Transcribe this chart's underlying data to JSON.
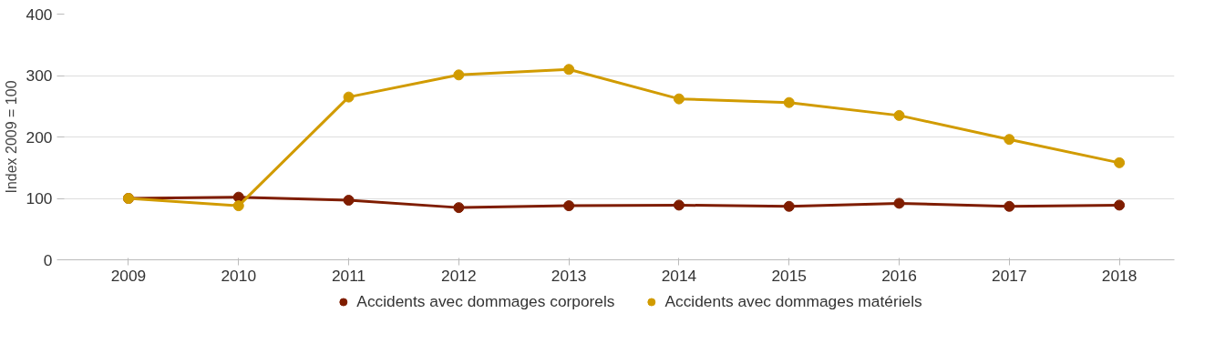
{
  "chart_data": {
    "type": "line",
    "ylabel": "Index 2009 = 100",
    "categories": [
      "2009",
      "2010",
      "2011",
      "2012",
      "2013",
      "2014",
      "2015",
      "2016",
      "2017",
      "2018"
    ],
    "series": [
      {
        "name": "Accidents avec dommages corporels",
        "color": "#7f1d00",
        "values": [
          100,
          102,
          97,
          85,
          88,
          89,
          87,
          92,
          87,
          89
        ]
      },
      {
        "name": "Accidents avec dommages matériels",
        "color": "#d19b00",
        "values": [
          100,
          88,
          265,
          301,
          310,
          262,
          256,
          235,
          196,
          158
        ]
      }
    ],
    "ylim": [
      0,
      400
    ],
    "yticks": [
      0,
      100,
      200,
      300,
      400
    ],
    "grid": "y",
    "legend": "bottom",
    "marker": "circle",
    "line_style": "solid"
  }
}
